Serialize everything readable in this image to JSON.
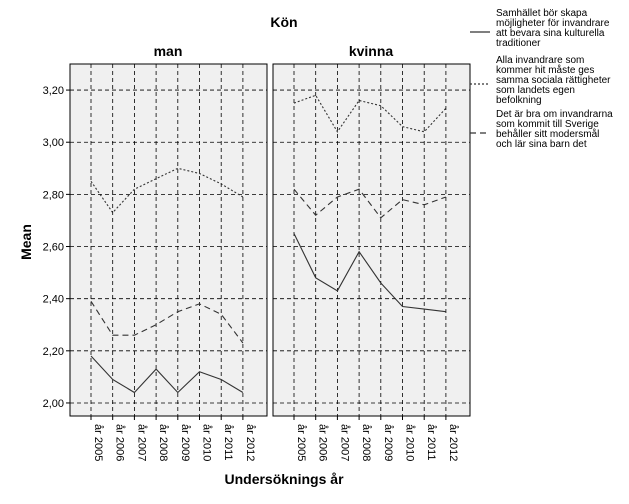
{
  "chart_data": {
    "type": "line",
    "title": "Kön",
    "xlabel": "Undersöknings år",
    "ylabel": "Mean",
    "ylim": [
      1.95,
      3.3
    ],
    "yticks": [
      "2,00",
      "2,20",
      "2,40",
      "2,60",
      "2,80",
      "3,00",
      "3,20"
    ],
    "ytick_values": [
      2.0,
      2.2,
      2.4,
      2.6,
      2.8,
      3.0,
      3.2
    ],
    "categories": [
      "år 2005",
      "år 2006",
      "år 2007",
      "år 2008",
      "år 2009",
      "år 2010",
      "år 2011",
      "år 2012"
    ],
    "grid": true,
    "legend_position": "top-right",
    "panels": [
      {
        "label": "man",
        "series": [
          {
            "name": "Samhället bör skapa möjligheter för invandrare att bevara sina kulturella traditioner",
            "style": "solid",
            "values": [
              2.18,
              2.09,
              2.04,
              2.13,
              2.04,
              2.12,
              2.09,
              2.04
            ]
          },
          {
            "name": "Alla invandrare som kommer hit måste ges samma sociala rättigheter som landets egen befolkning",
            "style": "dotted",
            "values": [
              2.85,
              2.73,
              2.82,
              2.86,
              2.9,
              2.88,
              2.84,
              2.79
            ]
          },
          {
            "name": "Det är bra om invandrarna som kommit till Sverige behåller sitt modersmål och lär sina barn det",
            "style": "dashed",
            "values": [
              2.39,
              2.26,
              2.26,
              2.3,
              2.35,
              2.38,
              2.34,
              2.23
            ]
          }
        ]
      },
      {
        "label": "kvinna",
        "series": [
          {
            "name": "Samhället bör skapa möjligheter för invandrare att bevara sina kulturella traditioner",
            "style": "solid",
            "values": [
              2.65,
              2.48,
              2.43,
              2.58,
              2.46,
              2.37,
              2.36,
              2.35
            ]
          },
          {
            "name": "Alla invandrare som kommer hit måste ges samma sociala rättigheter som landets egen befolkning",
            "style": "dotted",
            "values": [
              3.15,
              3.18,
              3.04,
              3.16,
              3.14,
              3.06,
              3.04,
              3.13
            ]
          },
          {
            "name": "Det är bra om invandrarna som kommit till Sverige behåller sitt modersmål och lär sina barn det",
            "style": "dashed",
            "values": [
              2.82,
              2.72,
              2.79,
              2.82,
              2.71,
              2.78,
              2.76,
              2.79
            ]
          }
        ]
      }
    ],
    "legend": [
      {
        "style": "solid",
        "lines": [
          "Samhället bör skapa",
          "möjligheter för invandrare",
          "att bevara sina kulturella",
          "traditioner"
        ]
      },
      {
        "style": "dotted",
        "lines": [
          "Alla invandrare som",
          "kommer hit måste ges",
          "samma sociala rättigheter",
          "som landets egen",
          "befolkning"
        ]
      },
      {
        "style": "dashed",
        "lines": [
          "Det är bra om invandrarna",
          "som kommit till Sverige",
          "behåller sitt modersmål",
          "och lär sina barn det"
        ]
      }
    ],
    "colors": {
      "plot_bg": "#f0f0f0",
      "line": "#333333",
      "grid": "#000000",
      "frame": "#000000"
    }
  }
}
